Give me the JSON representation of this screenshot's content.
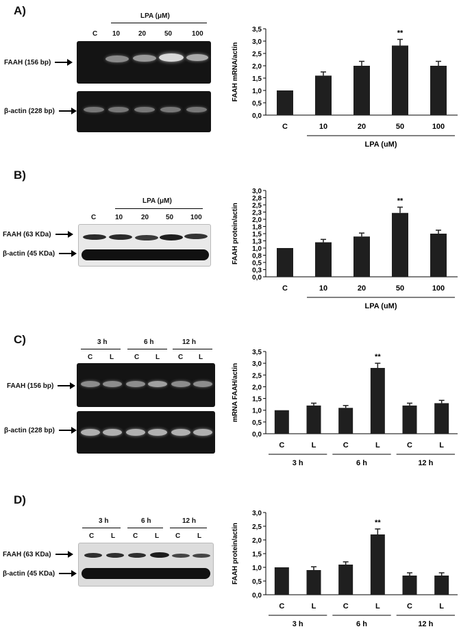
{
  "panels": [
    {
      "label": "A)",
      "blot": {
        "style": "dark",
        "group_header": "LPA (μM)",
        "lanes": [
          "C",
          "10",
          "20",
          "50",
          "100"
        ],
        "rows": [
          "FAAH (156 bp)",
          "β-actin (228 bp)"
        ]
      },
      "chart_data": {
        "type": "bar",
        "categories": [
          "C",
          "10",
          "20",
          "50",
          "100"
        ],
        "values": [
          1.0,
          1.6,
          2.0,
          2.82,
          2.0
        ],
        "errors": [
          0,
          0.15,
          0.18,
          0.25,
          0.18
        ],
        "significance": [
          "",
          "",
          "",
          "**",
          ""
        ],
        "ylabel": "FAAH mRNA/actin",
        "ylim": [
          0,
          3.5
        ],
        "yticks": [
          "0,0",
          "0,5",
          "1,0",
          "1,5",
          "2,0",
          "2,5",
          "3,0",
          "3,5"
        ],
        "group_labels": [
          {
            "label": "LPA (uM)",
            "from": 1,
            "to": 4
          }
        ]
      }
    },
    {
      "label": "B)",
      "blot": {
        "style": "wb",
        "group_header": "LPA (μM)",
        "lanes": [
          "C",
          "10",
          "20",
          "50",
          "100"
        ],
        "rows": [
          "FAAH (63 KDa)",
          "β-actin (45 KDa)"
        ]
      },
      "chart_data": {
        "type": "bar",
        "categories": [
          "C",
          "10",
          "20",
          "50",
          "100"
        ],
        "values": [
          1.0,
          1.2,
          1.4,
          2.22,
          1.5
        ],
        "errors": [
          0,
          0.1,
          0.12,
          0.2,
          0.12
        ],
        "significance": [
          "",
          "",
          "",
          "**",
          ""
        ],
        "ylabel": "FAAH protein/actin",
        "ylim": [
          0,
          3.0
        ],
        "yticks": [
          "0,0",
          "0,3",
          "0,5",
          "0,8",
          "1,0",
          "1,3",
          "1,5",
          "1,8",
          "2,0",
          "2,3",
          "2,5",
          "2,8",
          "3,0"
        ],
        "group_labels": [
          {
            "label": "LPA (uM)",
            "from": 1,
            "to": 4
          }
        ]
      }
    },
    {
      "label": "C)",
      "blot": {
        "style": "dark",
        "groups": [
          "3 h",
          "6 h",
          "12 h"
        ],
        "lanes": [
          "C",
          "L",
          "C",
          "L",
          "C",
          "L"
        ],
        "rows": [
          "FAAH (156 bp)",
          "β-actin (228 bp)"
        ]
      },
      "chart_data": {
        "type": "bar",
        "categories": [
          "C",
          "L",
          "C",
          "L",
          "C",
          "L"
        ],
        "values": [
          1.0,
          1.2,
          1.1,
          2.8,
          1.2,
          1.3
        ],
        "errors": [
          0,
          0.1,
          0.1,
          0.2,
          0.1,
          0.12
        ],
        "significance": [
          "",
          "",
          "",
          "**",
          "",
          ""
        ],
        "ylabel": "mRNA FAAH/actin",
        "ylim": [
          0,
          3.5
        ],
        "yticks": [
          "0,0",
          "0,5",
          "1,0",
          "1,5",
          "2,0",
          "2,5",
          "3,0",
          "3,5"
        ],
        "group_labels": [
          {
            "label": "3 h",
            "from": 0,
            "to": 1
          },
          {
            "label": "6 h",
            "from": 2,
            "to": 3
          },
          {
            "label": "12 h",
            "from": 4,
            "to": 5
          }
        ]
      }
    },
    {
      "label": "D)",
      "blot": {
        "style": "wb",
        "groups": [
          "3 h",
          "6 h",
          "12 h"
        ],
        "lanes": [
          "C",
          "L",
          "C",
          "L",
          "C",
          "L"
        ],
        "rows": [
          "FAAH (63 KDa)",
          "β-actin (45 KDa)"
        ]
      },
      "chart_data": {
        "type": "bar",
        "categories": [
          "C",
          "L",
          "C",
          "L",
          "C",
          "L"
        ],
        "values": [
          1.0,
          0.9,
          1.1,
          2.2,
          0.7,
          0.7
        ],
        "errors": [
          0,
          0.12,
          0.1,
          0.2,
          0.1,
          0.1
        ],
        "significance": [
          "",
          "",
          "",
          "**",
          "",
          ""
        ],
        "ylabel": "FAAH protein/actin",
        "ylim": [
          0,
          3.0
        ],
        "yticks": [
          "0,0",
          "0,5",
          "1,0",
          "1,5",
          "2,0",
          "2,5",
          "3,0"
        ],
        "group_labels": [
          {
            "label": "3 h",
            "from": 0,
            "to": 1
          },
          {
            "label": "6 h",
            "from": 2,
            "to": 3
          },
          {
            "label": "12 h",
            "from": 4,
            "to": 5
          }
        ]
      }
    }
  ]
}
